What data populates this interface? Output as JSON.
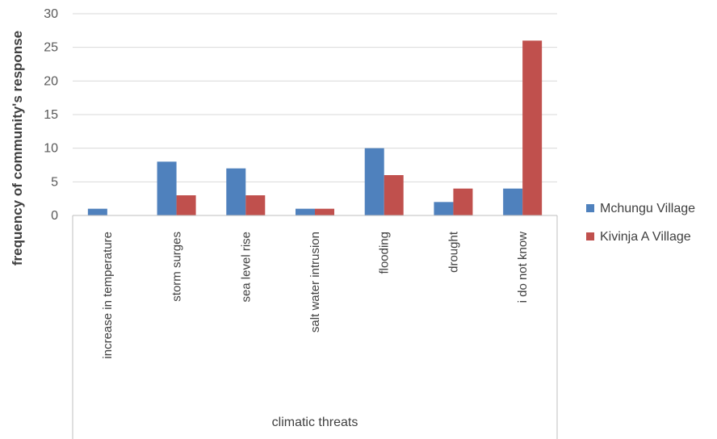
{
  "chart_data": {
    "type": "bar",
    "categories": [
      "increase in temperature",
      "storm surges",
      "sea level rise",
      "salt water intrusion",
      "flooding",
      "drought",
      "i do not know"
    ],
    "series": [
      {
        "name": "Mchungu Village",
        "values": [
          1,
          8,
          7,
          1,
          10,
          2,
          4
        ],
        "color": "#4f81bd"
      },
      {
        "name": "Kivinja A Village",
        "values": [
          0,
          3,
          3,
          1,
          6,
          4,
          26
        ],
        "color": "#c0504d"
      }
    ],
    "title": "",
    "xlabel": "climatic threats",
    "ylabel": "frequency of community's response",
    "ylim": [
      0,
      30
    ],
    "yticks": [
      0,
      5,
      10,
      15,
      20,
      25,
      30
    ],
    "grid": true,
    "legend_position": "right"
  }
}
